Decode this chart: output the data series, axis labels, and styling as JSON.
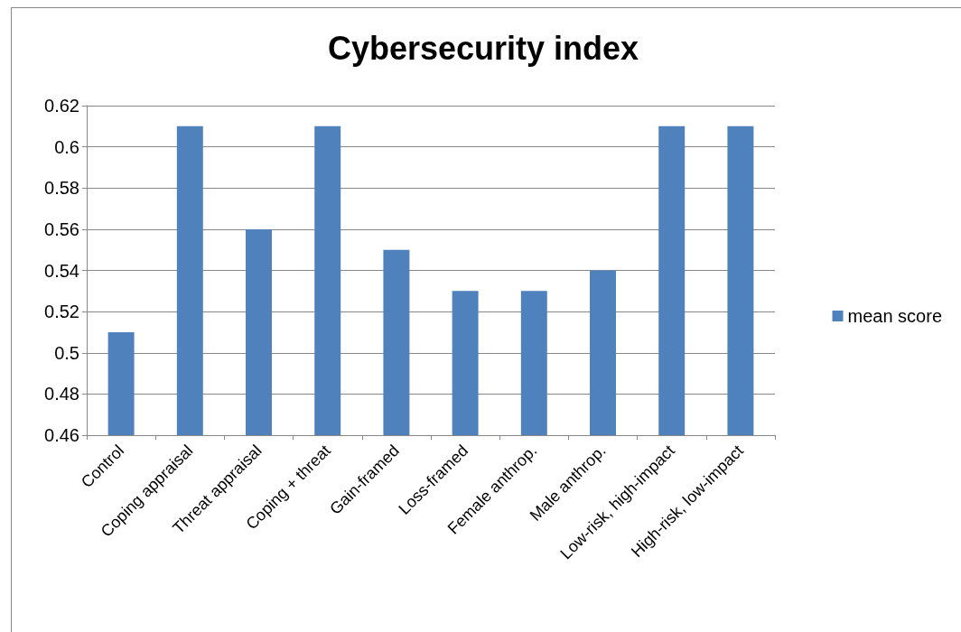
{
  "chart_data": {
    "type": "bar",
    "title": "Cybersecurity index",
    "categories": [
      "Control",
      "Coping appraisal",
      "Threat appraisal",
      "Coping + threat",
      "Gain-framed",
      "Loss-framed",
      "Female anthrop.",
      "Male anthrop.",
      "Low-risk, high-impact",
      "High-risk, low-impact"
    ],
    "series": [
      {
        "name": "mean score",
        "color": "#4f81bd",
        "values": [
          0.51,
          0.61,
          0.56,
          0.61,
          0.55,
          0.53,
          0.53,
          0.54,
          0.61,
          0.61
        ]
      }
    ],
    "ylim": [
      0.46,
      0.62
    ],
    "yticks": [
      0.46,
      0.48,
      0.5,
      0.52,
      0.54,
      0.56,
      0.58,
      0.6,
      0.62
    ],
    "grid": "y",
    "legend": "right"
  }
}
